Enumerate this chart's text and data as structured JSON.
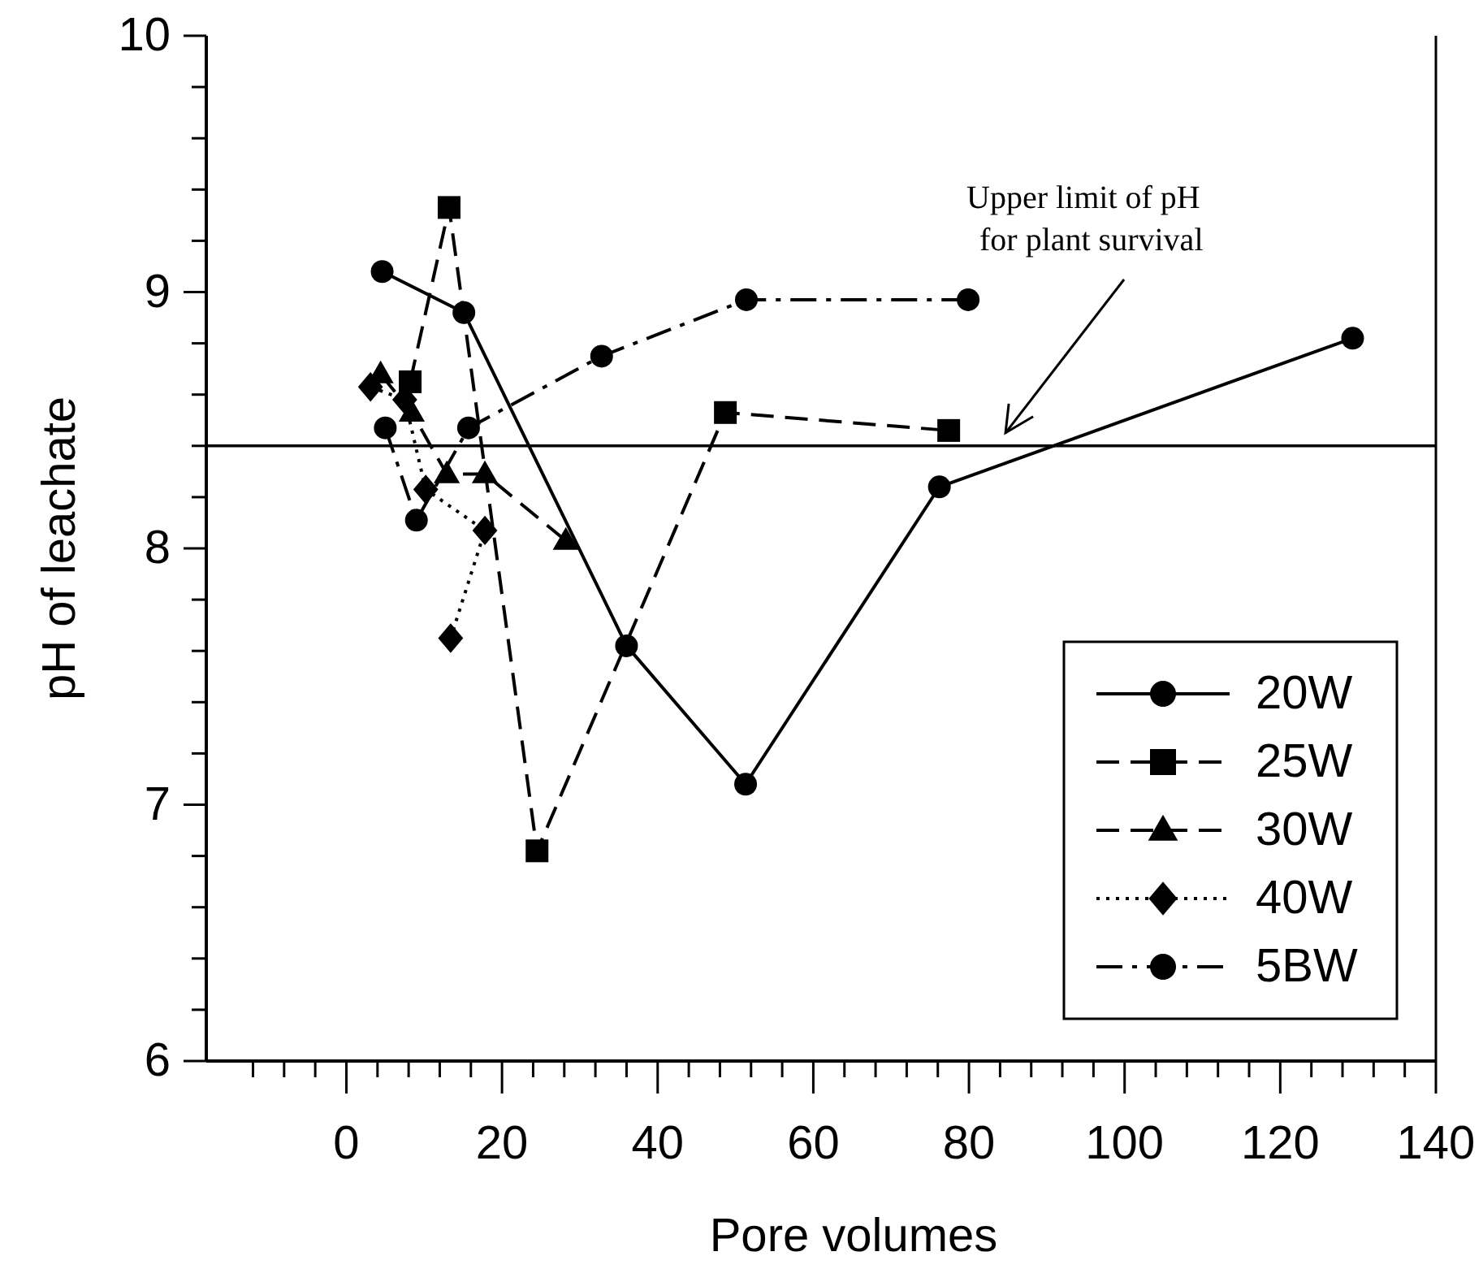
{
  "chart_data": {
    "type": "line",
    "xlabel": "Pore volumes",
    "ylabel": "pH of leachate",
    "xlim": [
      -18,
      140
    ],
    "ylim": [
      6,
      10
    ],
    "xticks": [
      {
        "value": -12,
        "label": null
      },
      {
        "value": -8,
        "label": null
      },
      {
        "value": -4,
        "label": null
      },
      0,
      {
        "value": 4,
        "label": null
      },
      {
        "value": 8,
        "label": null
      },
      {
        "value": 12,
        "label": null
      },
      {
        "value": 16,
        "label": null
      },
      20,
      {
        "value": 24,
        "label": null
      },
      {
        "value": 28,
        "label": null
      },
      {
        "value": 32,
        "label": null
      },
      {
        "value": 36,
        "label": null
      },
      40,
      {
        "value": 44,
        "label": null
      },
      {
        "value": 48,
        "label": null
      },
      {
        "value": 52,
        "label": null
      },
      {
        "value": 56,
        "label": null
      },
      60,
      {
        "value": 64,
        "label": null
      },
      {
        "value": 68,
        "label": null
      },
      {
        "value": 72,
        "label": null
      },
      {
        "value": 76,
        "label": null
      },
      80,
      {
        "value": 84,
        "label": null
      },
      {
        "value": 88,
        "label": null
      },
      {
        "value": 92,
        "label": null
      },
      {
        "value": 96,
        "label": null
      },
      100,
      {
        "value": 104,
        "label": null
      },
      {
        "value": 108,
        "label": null
      },
      {
        "value": 112,
        "label": null
      },
      {
        "value": 116,
        "label": null
      },
      120,
      {
        "value": 124,
        "label": null
      },
      {
        "value": 128,
        "label": null
      },
      {
        "value": 132,
        "label": null
      },
      {
        "value": 136,
        "label": null
      },
      140
    ],
    "yticks": [
      6,
      {
        "value": 6.2,
        "label": null
      },
      {
        "value": 6.4,
        "label": null
      },
      {
        "value": 6.6,
        "label": null
      },
      {
        "value": 6.8,
        "label": null
      },
      7,
      {
        "value": 7.2,
        "label": null
      },
      {
        "value": 7.4,
        "label": null
      },
      {
        "value": 7.6,
        "label": null
      },
      {
        "value": 7.8,
        "label": null
      },
      8,
      {
        "value": 8.2,
        "label": null
      },
      {
        "value": 8.4,
        "label": null
      },
      {
        "value": 8.6,
        "label": null
      },
      {
        "value": 8.8,
        "label": null
      },
      9,
      {
        "value": 9.2,
        "label": null
      },
      {
        "value": 9.4,
        "label": null
      },
      {
        "value": 9.6,
        "label": null
      },
      {
        "value": 9.8,
        "label": null
      },
      10
    ],
    "grid": false,
    "legend": "bottom right",
    "series": [
      {
        "name": "20W",
        "color": "#000000",
        "marker": "circle",
        "line_style": "solid",
        "x": [
          4.6,
          15.1,
          36,
          51.3,
          76.2,
          129.3
        ],
        "values": [
          9.08,
          8.92,
          7.62,
          7.08,
          8.24,
          8.82
        ]
      },
      {
        "name": "25W",
        "color": "#000000",
        "marker": "square",
        "line_style": "dashed",
        "x": [
          8.2,
          13.2,
          24.5,
          48.7,
          77.4
        ],
        "values": [
          8.65,
          9.33,
          6.82,
          8.53,
          8.46
        ]
      },
      {
        "name": "30W",
        "color": "#000000",
        "marker": "triangle",
        "line_style": "dashed",
        "x": [
          4.4,
          8.4,
          12.9,
          17.8,
          28.2
        ],
        "values": [
          8.68,
          8.53,
          8.29,
          8.29,
          8.03
        ]
      },
      {
        "name": "40W",
        "color": "#000000",
        "marker": "diamond",
        "line_style": "dotted",
        "x": [
          3.1,
          7.5,
          10.2,
          17.8,
          13.4
        ],
        "values": [
          8.63,
          8.58,
          8.23,
          8.07,
          7.65
        ]
      },
      {
        "name": "5BW",
        "color": "#000000",
        "marker": "circle",
        "line_style": "dashdot",
        "x": [
          5,
          9,
          15.7,
          32.8,
          51.4,
          79.9
        ],
        "values": [
          8.47,
          8.11,
          8.47,
          8.75,
          8.97,
          8.97
        ]
      }
    ],
    "ref_lines": [
      {
        "axis": "y",
        "value": 8.4,
        "label": "Upper limit of pH for plant survival",
        "color": "#000000"
      }
    ]
  }
}
